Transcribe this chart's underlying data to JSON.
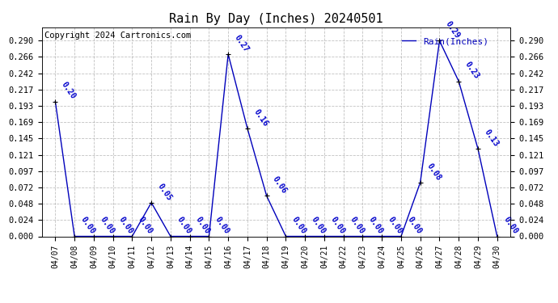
{
  "title": "Rain By Day (Inches) 20240501",
  "copyright_text": "Copyright 2024 Cartronics.com",
  "legend_label": "Rain(Inches)",
  "dates": [
    "04/07",
    "04/08",
    "04/09",
    "04/10",
    "04/11",
    "04/12",
    "04/13",
    "04/14",
    "04/15",
    "04/16",
    "04/17",
    "04/18",
    "04/19",
    "04/20",
    "04/21",
    "04/22",
    "04/23",
    "04/24",
    "04/25",
    "04/26",
    "04/27",
    "04/28",
    "04/29",
    "04/30"
  ],
  "values": [
    0.2,
    0.0,
    0.0,
    0.0,
    0.0,
    0.05,
    0.0,
    0.0,
    0.0,
    0.27,
    0.16,
    0.06,
    0.0,
    0.0,
    0.0,
    0.0,
    0.0,
    0.0,
    0.0,
    0.08,
    0.29,
    0.23,
    0.13,
    0.0
  ],
  "line_color": "#0000bb",
  "marker_color": "#000000",
  "label_color": "#0000cc",
  "bg_color": "#ffffff",
  "grid_color": "#999999",
  "title_fontsize": 11,
  "copyright_fontsize": 7.5,
  "legend_fontsize": 8,
  "ylim": [
    0,
    0.31
  ],
  "yticks": [
    0.0,
    0.024,
    0.048,
    0.072,
    0.097,
    0.121,
    0.145,
    0.169,
    0.193,
    0.217,
    0.242,
    0.266,
    0.29
  ],
  "annotation_fontsize": 7,
  "annotation_rotation": -55
}
